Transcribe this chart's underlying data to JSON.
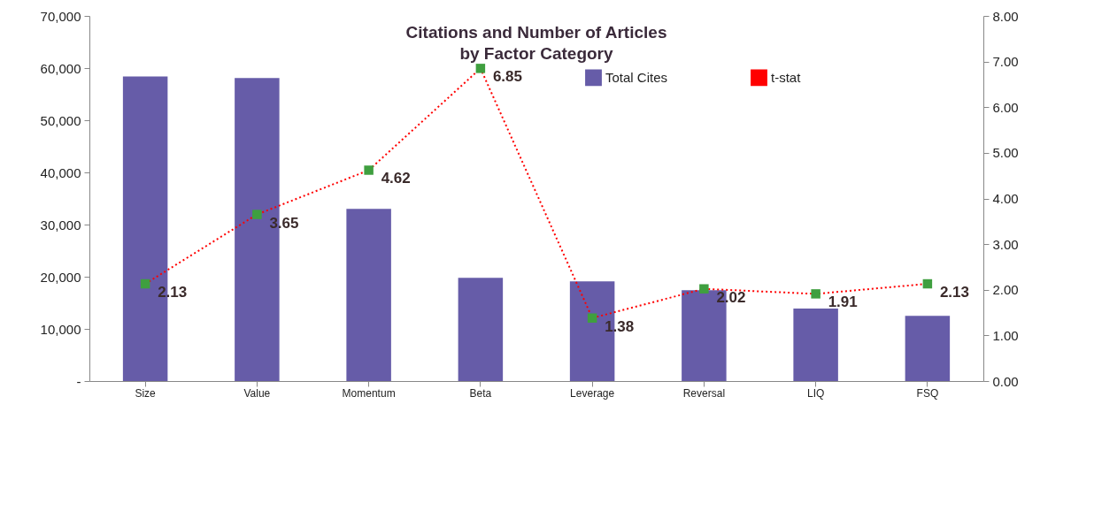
{
  "chart_data": {
    "type": "bar",
    "title": "Citations and Number of Articles\nby Factor Category",
    "categories": [
      "Size",
      "Value",
      "Momentum",
      "Beta",
      "Leverage",
      "Reversal",
      "LIQ",
      "FSQ"
    ],
    "series": [
      {
        "name": "Total Cites",
        "color": "#665ca8",
        "values": [
          58400,
          58100,
          33000,
          19800,
          19100,
          17400,
          13900,
          12500
        ]
      },
      {
        "name": "t-stat",
        "type": "line",
        "axis": "y2",
        "color": "#ff0000",
        "marker": "square",
        "line_style": "dotted",
        "values": [
          2.13,
          3.65,
          4.62,
          6.85,
          1.38,
          2.02,
          1.91,
          2.13
        ],
        "value_labels": [
          "2.13",
          "3.65",
          "4.62",
          "6.85",
          "1.38",
          "2.02",
          "1.91",
          "2.13"
        ]
      }
    ],
    "ylim": [
      0,
      70000
    ],
    "yticks": [
      {
        "value": 0,
        "label": "-"
      },
      {
        "value": 10000,
        "label": "10,000"
      },
      {
        "value": 20000,
        "label": "20,000"
      },
      {
        "value": 30000,
        "label": "30,000"
      },
      {
        "value": 40000,
        "label": "40,000"
      },
      {
        "value": 50000,
        "label": "50,000"
      },
      {
        "value": 60000,
        "label": "60,000"
      },
      {
        "value": 70000,
        "label": "70,000"
      }
    ],
    "y2lim": [
      0,
      8
    ],
    "y2ticks": [
      {
        "value": 0,
        "label": "0.00"
      },
      {
        "value": 1,
        "label": "1.00"
      },
      {
        "value": 2,
        "label": "2.00"
      },
      {
        "value": 3,
        "label": "3.00"
      },
      {
        "value": 4,
        "label": "4.00"
      },
      {
        "value": 5,
        "label": "5.00"
      },
      {
        "value": 6,
        "label": "6.00"
      },
      {
        "value": 7,
        "label": "7.00"
      },
      {
        "value": 8,
        "label": "8.00"
      }
    ],
    "legend": "top right"
  }
}
